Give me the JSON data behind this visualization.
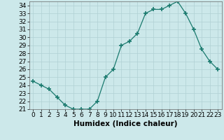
{
  "x": [
    0,
    1,
    2,
    3,
    4,
    5,
    6,
    7,
    8,
    9,
    10,
    11,
    12,
    13,
    14,
    15,
    16,
    17,
    18,
    19,
    20,
    21,
    22,
    23
  ],
  "y": [
    24.5,
    24.0,
    23.5,
    22.5,
    21.5,
    21.0,
    21.0,
    21.0,
    22.0,
    25.0,
    26.0,
    29.0,
    29.5,
    30.5,
    33.0,
    33.5,
    33.5,
    34.0,
    34.5,
    33.0,
    31.0,
    28.5,
    27.0,
    26.0
  ],
  "line_color": "#1a7a6e",
  "marker": "+",
  "marker_size": 4,
  "bg_color": "#cce8ea",
  "grid_color": "#b0d0d4",
  "xlabel": "Humidex (Indice chaleur)",
  "xlim": [
    -0.5,
    23.5
  ],
  "ylim": [
    21,
    34.5
  ],
  "yticks": [
    21,
    22,
    23,
    24,
    25,
    26,
    27,
    28,
    29,
    30,
    31,
    32,
    33,
    34
  ],
  "xticks": [
    0,
    1,
    2,
    3,
    4,
    5,
    6,
    7,
    8,
    9,
    10,
    11,
    12,
    13,
    14,
    15,
    16,
    17,
    18,
    19,
    20,
    21,
    22,
    23
  ],
  "tick_fontsize": 6.5,
  "xlabel_fontsize": 7.5
}
